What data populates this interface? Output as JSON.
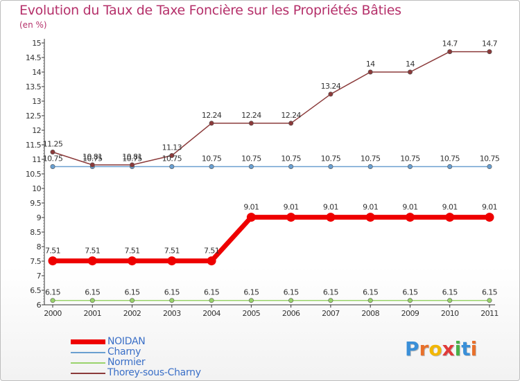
{
  "chart_data": {
    "type": "line",
    "title": "Evolution du Taux de Taxe Foncière sur les Propriétés Bâties",
    "unit_label": "(en %)",
    "xlabel": "",
    "ylabel": "",
    "x": [
      "2000",
      "2001",
      "2002",
      "2003",
      "2004",
      "2005",
      "2006",
      "2007",
      "2008",
      "2009",
      "2010",
      "2011"
    ],
    "ylim": [
      6,
      15
    ],
    "y_ticks": [
      "6",
      "6.5",
      "7",
      "7.5",
      "8",
      "8.5",
      "9",
      "9.5",
      "10",
      "10.5",
      "11",
      "11.5",
      "12",
      "12.5",
      "13",
      "13.5",
      "14",
      "14.5",
      "15"
    ],
    "series": [
      {
        "name": "NOIDAN",
        "color": "#ee0000",
        "values": [
          7.51,
          7.51,
          7.51,
          7.51,
          7.51,
          9.01,
          9.01,
          9.01,
          9.01,
          9.01,
          9.01,
          9.01
        ],
        "labels": [
          "7.51",
          "7.51",
          "7.51",
          "7.51",
          "7.51",
          "9.01",
          "9.01",
          "9.01",
          "9.01",
          "9.01",
          "9.01",
          "9.01"
        ]
      },
      {
        "name": "Charny",
        "color": "#6a9fd0",
        "values": [
          10.75,
          10.75,
          10.75,
          10.75,
          10.75,
          10.75,
          10.75,
          10.75,
          10.75,
          10.75,
          10.75,
          10.75
        ],
        "labels": [
          "10.75",
          "10.75",
          "10.75",
          "10.75",
          "10.75",
          "10.75",
          "10.75",
          "10.75",
          "10.75",
          "10.75",
          "10.75",
          "10.75"
        ]
      },
      {
        "name": "Normier",
        "color": "#99d36b",
        "values": [
          6.15,
          6.15,
          6.15,
          6.15,
          6.15,
          6.15,
          6.15,
          6.15,
          6.15,
          6.15,
          6.15,
          6.15
        ],
        "labels": [
          "6.15",
          "6.15",
          "6.15",
          "6.15",
          "6.15",
          "6.15",
          "6.15",
          "6.15",
          "6.15",
          "6.15",
          "6.15",
          "6.15"
        ]
      },
      {
        "name": "Thorey-sous-Charny",
        "color": "#8b3a3a",
        "values": [
          11.25,
          10.81,
          10.81,
          11.13,
          12.24,
          12.24,
          12.24,
          13.24,
          14,
          14,
          14.7,
          14.7
        ],
        "labels": [
          "11.25",
          "10.81",
          "10.81",
          "11.13",
          "12.24",
          "12.24",
          "12.24",
          "13.24",
          "14",
          "14",
          "14.7",
          "14.7"
        ]
      }
    ]
  },
  "logo": {
    "letters": [
      "P",
      "r",
      "o",
      "x",
      "i",
      "t",
      "i"
    ],
    "colors": [
      "#3a8fd8",
      "#e8702a",
      "#f2b705",
      "#e03a3a",
      "#49b048",
      "#3a8fd8",
      "#e8702a"
    ]
  }
}
